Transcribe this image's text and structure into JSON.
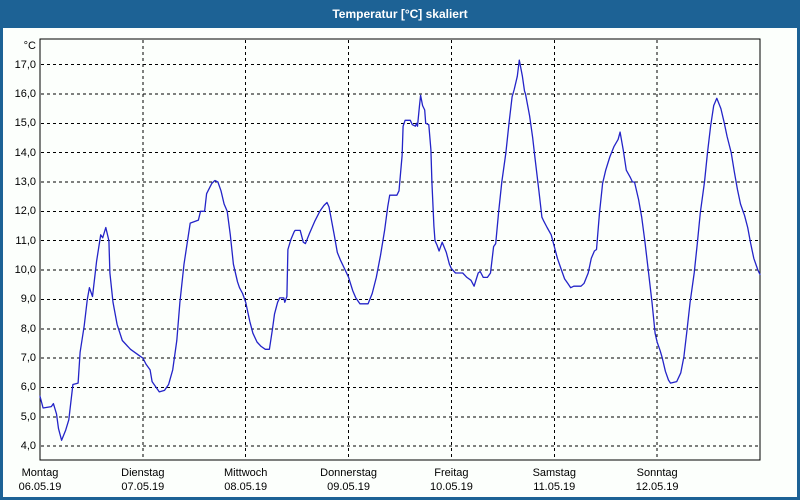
{
  "window": {
    "title": "Temperatur [°C] skaliert"
  },
  "colors": {
    "titlebar_bg": "#1D6295",
    "titlebar_text": "#FFFFFF",
    "window_border": "#1D6295",
    "background": "#FCFFFC",
    "grid": "#000000",
    "line": "#2424C8",
    "text": "#000000"
  },
  "chart_data": {
    "type": "line",
    "title": "Temperatur [°C] skaliert",
    "xlabel": "",
    "ylabel": "°C",
    "ylim": [
      3.53,
      17.87
    ],
    "x_range_days": [
      0,
      7
    ],
    "grid": true,
    "legend": false,
    "y_ticks": [
      {
        "value": 17,
        "label": "17,0"
      },
      {
        "value": 16,
        "label": "16,0"
      },
      {
        "value": 15,
        "label": "15,0"
      },
      {
        "value": 14,
        "label": "14,0"
      },
      {
        "value": 13,
        "label": "13,0"
      },
      {
        "value": 12,
        "label": "12,0"
      },
      {
        "value": 11,
        "label": "11,0"
      },
      {
        "value": 10,
        "label": "10,0"
      },
      {
        "value": 9,
        "label": "9,0"
      },
      {
        "value": 8,
        "label": "8,0"
      },
      {
        "value": 7,
        "label": "7,0"
      },
      {
        "value": 6,
        "label": "6,0"
      },
      {
        "value": 5,
        "label": "5,0"
      },
      {
        "value": 4,
        "label": "4,0"
      }
    ],
    "x_categories": [
      {
        "weekday": "Montag",
        "date": "06.05.19",
        "day_index": 0
      },
      {
        "weekday": "Dienstag",
        "date": "07.05.19",
        "day_index": 1
      },
      {
        "weekday": "Mittwoch",
        "date": "08.05.19",
        "day_index": 2
      },
      {
        "weekday": "Donnerstag",
        "date": "09.05.19",
        "day_index": 3
      },
      {
        "weekday": "Freitag",
        "date": "10.05.19",
        "day_index": 4
      },
      {
        "weekday": "Samstag",
        "date": "11.05.19",
        "day_index": 5
      },
      {
        "weekday": "Sonntag",
        "date": "12.05.19",
        "day_index": 6
      }
    ],
    "series": [
      {
        "name": "Temperatur",
        "color": "#2424C8",
        "points": [
          [
            0.0,
            5.7
          ],
          [
            0.03,
            5.3
          ],
          [
            0.11,
            5.35
          ],
          [
            0.13,
            5.45
          ],
          [
            0.16,
            5.1
          ],
          [
            0.18,
            4.6
          ],
          [
            0.21,
            4.2
          ],
          [
            0.25,
            4.55
          ],
          [
            0.28,
            4.9
          ],
          [
            0.32,
            6.1
          ],
          [
            0.37,
            6.15
          ],
          [
            0.39,
            7.2
          ],
          [
            0.43,
            8.1
          ],
          [
            0.46,
            9.0
          ],
          [
            0.48,
            9.4
          ],
          [
            0.51,
            9.1
          ],
          [
            0.55,
            10.3
          ],
          [
            0.59,
            11.2
          ],
          [
            0.61,
            11.1
          ],
          [
            0.64,
            11.45
          ],
          [
            0.67,
            11.0
          ],
          [
            0.68,
            9.9
          ],
          [
            0.71,
            8.9
          ],
          [
            0.75,
            8.15
          ],
          [
            0.8,
            7.6
          ],
          [
            0.88,
            7.3
          ],
          [
            0.96,
            7.1
          ],
          [
            1.0,
            7.0
          ],
          [
            1.03,
            6.8
          ],
          [
            1.07,
            6.6
          ],
          [
            1.09,
            6.2
          ],
          [
            1.13,
            6.0
          ],
          [
            1.16,
            5.85
          ],
          [
            1.21,
            5.9
          ],
          [
            1.25,
            6.1
          ],
          [
            1.29,
            6.6
          ],
          [
            1.33,
            7.6
          ],
          [
            1.36,
            8.9
          ],
          [
            1.4,
            10.2
          ],
          [
            1.46,
            11.6
          ],
          [
            1.5,
            11.65
          ],
          [
            1.54,
            11.7
          ],
          [
            1.56,
            12.0
          ],
          [
            1.6,
            12.0
          ],
          [
            1.62,
            12.6
          ],
          [
            1.67,
            12.95
          ],
          [
            1.7,
            13.05
          ],
          [
            1.73,
            13.0
          ],
          [
            1.76,
            12.7
          ],
          [
            1.79,
            12.25
          ],
          [
            1.82,
            12.0
          ],
          [
            1.85,
            11.2
          ],
          [
            1.88,
            10.2
          ],
          [
            1.92,
            9.6
          ],
          [
            1.94,
            9.4
          ],
          [
            1.97,
            9.2
          ],
          [
            2.0,
            8.9
          ],
          [
            2.04,
            8.25
          ],
          [
            2.07,
            7.85
          ],
          [
            2.11,
            7.55
          ],
          [
            2.15,
            7.4
          ],
          [
            2.19,
            7.3
          ],
          [
            2.23,
            7.3
          ],
          [
            2.26,
            8.0
          ],
          [
            2.28,
            8.5
          ],
          [
            2.31,
            8.9
          ],
          [
            2.33,
            9.05
          ],
          [
            2.37,
            9.05
          ],
          [
            2.38,
            8.9
          ],
          [
            2.4,
            9.1
          ],
          [
            2.41,
            10.7
          ],
          [
            2.44,
            11.05
          ],
          [
            2.47,
            11.3
          ],
          [
            2.48,
            11.35
          ],
          [
            2.53,
            11.35
          ],
          [
            2.56,
            10.95
          ],
          [
            2.58,
            10.9
          ],
          [
            2.62,
            11.25
          ],
          [
            2.67,
            11.65
          ],
          [
            2.72,
            12.0
          ],
          [
            2.76,
            12.2
          ],
          [
            2.79,
            12.3
          ],
          [
            2.81,
            12.15
          ],
          [
            2.86,
            11.2
          ],
          [
            2.89,
            10.6
          ],
          [
            2.92,
            10.35
          ],
          [
            2.96,
            10.05
          ],
          [
            3.0,
            9.75
          ],
          [
            3.04,
            9.3
          ],
          [
            3.07,
            9.05
          ],
          [
            3.11,
            8.85
          ],
          [
            3.19,
            8.85
          ],
          [
            3.23,
            9.2
          ],
          [
            3.27,
            9.75
          ],
          [
            3.31,
            10.5
          ],
          [
            3.35,
            11.35
          ],
          [
            3.38,
            12.15
          ],
          [
            3.4,
            12.55
          ],
          [
            3.47,
            12.55
          ],
          [
            3.49,
            12.7
          ],
          [
            3.52,
            13.9
          ],
          [
            3.53,
            14.9
          ],
          [
            3.55,
            15.1
          ],
          [
            3.6,
            15.1
          ],
          [
            3.62,
            14.95
          ],
          [
            3.65,
            14.9
          ],
          [
            3.66,
            15.0
          ],
          [
            3.67,
            14.9
          ],
          [
            3.69,
            15.6
          ],
          [
            3.7,
            15.95
          ],
          [
            3.72,
            15.6
          ],
          [
            3.74,
            15.45
          ],
          [
            3.75,
            15.0
          ],
          [
            3.78,
            14.95
          ],
          [
            3.8,
            14.1
          ],
          [
            3.81,
            13.0
          ],
          [
            3.83,
            11.5
          ],
          [
            3.84,
            11.0
          ],
          [
            3.86,
            10.85
          ],
          [
            3.88,
            10.65
          ],
          [
            3.91,
            10.95
          ],
          [
            3.95,
            10.6
          ],
          [
            3.98,
            10.2
          ],
          [
            4.0,
            10.05
          ],
          [
            4.04,
            9.9
          ],
          [
            4.11,
            9.9
          ],
          [
            4.15,
            9.75
          ],
          [
            4.19,
            9.65
          ],
          [
            4.22,
            9.45
          ],
          [
            4.26,
            9.9
          ],
          [
            4.28,
            9.95
          ],
          [
            4.31,
            9.75
          ],
          [
            4.35,
            9.75
          ],
          [
            4.38,
            9.9
          ],
          [
            4.41,
            10.8
          ],
          [
            4.43,
            10.9
          ],
          [
            4.46,
            12.0
          ],
          [
            4.49,
            13.0
          ],
          [
            4.53,
            14.0
          ],
          [
            4.56,
            15.0
          ],
          [
            4.59,
            15.9
          ],
          [
            4.61,
            16.15
          ],
          [
            4.64,
            16.6
          ],
          [
            4.66,
            17.15
          ],
          [
            4.69,
            16.6
          ],
          [
            4.71,
            16.1
          ],
          [
            4.72,
            16.0
          ],
          [
            4.76,
            15.25
          ],
          [
            4.79,
            14.5
          ],
          [
            4.81,
            13.9
          ],
          [
            4.85,
            12.7
          ],
          [
            4.88,
            11.8
          ],
          [
            4.9,
            11.65
          ],
          [
            4.93,
            11.45
          ],
          [
            4.97,
            11.2
          ],
          [
            5.0,
            10.8
          ],
          [
            5.03,
            10.4
          ],
          [
            5.07,
            10.0
          ],
          [
            5.1,
            9.7
          ],
          [
            5.13,
            9.55
          ],
          [
            5.16,
            9.4
          ],
          [
            5.19,
            9.45
          ],
          [
            5.26,
            9.45
          ],
          [
            5.29,
            9.55
          ],
          [
            5.33,
            9.9
          ],
          [
            5.36,
            10.4
          ],
          [
            5.39,
            10.65
          ],
          [
            5.41,
            10.7
          ],
          [
            5.44,
            11.95
          ],
          [
            5.47,
            12.95
          ],
          [
            5.5,
            13.4
          ],
          [
            5.54,
            13.85
          ],
          [
            5.58,
            14.2
          ],
          [
            5.62,
            14.45
          ],
          [
            5.64,
            14.7
          ],
          [
            5.67,
            14.1
          ],
          [
            5.7,
            13.4
          ],
          [
            5.74,
            13.15
          ],
          [
            5.76,
            13.0
          ],
          [
            5.78,
            13.0
          ],
          [
            5.82,
            12.4
          ],
          [
            5.85,
            11.8
          ],
          [
            5.88,
            11.0
          ],
          [
            5.91,
            10.1
          ],
          [
            5.95,
            8.9
          ],
          [
            5.98,
            7.85
          ],
          [
            6.0,
            7.55
          ],
          [
            6.03,
            7.25
          ],
          [
            6.05,
            7.0
          ],
          [
            6.08,
            6.55
          ],
          [
            6.11,
            6.25
          ],
          [
            6.13,
            6.15
          ],
          [
            6.19,
            6.2
          ],
          [
            6.23,
            6.5
          ],
          [
            6.26,
            7.05
          ],
          [
            6.29,
            7.95
          ],
          [
            6.32,
            8.9
          ],
          [
            6.36,
            9.9
          ],
          [
            6.39,
            10.9
          ],
          [
            6.42,
            11.95
          ],
          [
            6.46,
            13.0
          ],
          [
            6.49,
            14.0
          ],
          [
            6.52,
            14.9
          ],
          [
            6.55,
            15.6
          ],
          [
            6.58,
            15.85
          ],
          [
            6.62,
            15.5
          ],
          [
            6.65,
            15.05
          ],
          [
            6.68,
            14.55
          ],
          [
            6.72,
            14.0
          ],
          [
            6.75,
            13.35
          ],
          [
            6.78,
            12.75
          ],
          [
            6.81,
            12.25
          ],
          [
            6.85,
            11.85
          ],
          [
            6.88,
            11.45
          ],
          [
            6.91,
            10.9
          ],
          [
            6.94,
            10.4
          ],
          [
            6.98,
            10.0
          ],
          [
            7.0,
            9.85
          ]
        ]
      }
    ]
  }
}
